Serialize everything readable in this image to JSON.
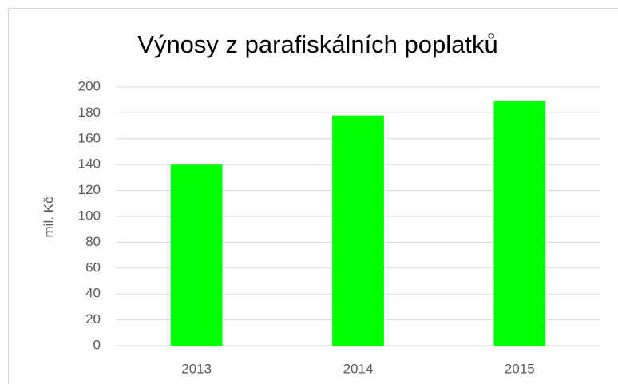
{
  "chart_data": {
    "type": "bar",
    "title": "Výnosy z parafiskálních poplatků",
    "y_label": "mil. Kč",
    "categories": [
      "2013",
      "2014",
      "2015"
    ],
    "values": [
      140,
      178,
      189
    ],
    "color": "#00ff00",
    "ylim": [
      0,
      200
    ],
    "yticks": [
      0,
      20,
      40,
      60,
      80,
      100,
      120,
      140,
      160,
      180,
      200
    ],
    "grid": true
  }
}
